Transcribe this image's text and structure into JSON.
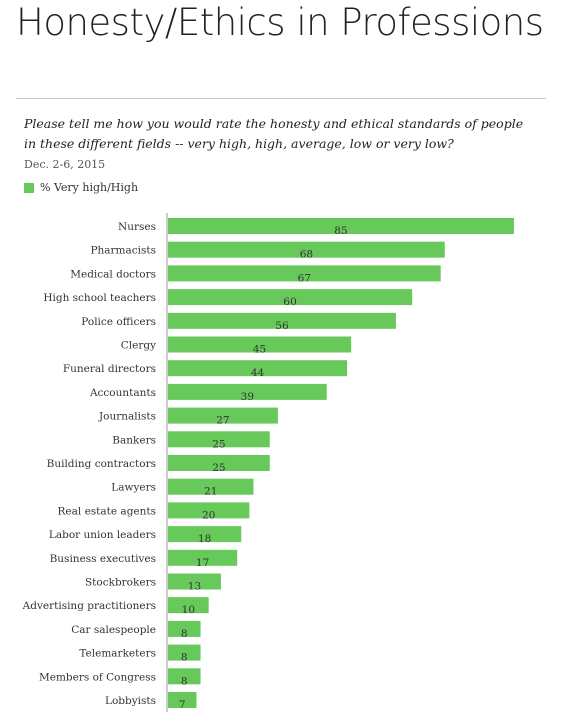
{
  "page": {
    "title": "Honesty/Ethics in Professions",
    "question": "Please tell me how you would rate the honesty and ethical standards of people in these different fields -- very high, high, average, low or very low?",
    "date": "Dec. 2-6, 2015"
  },
  "colors": {
    "bar": "#66c95a",
    "axis": "#999999"
  },
  "chart_data": {
    "type": "bar",
    "orientation": "horizontal",
    "legend": [
      "% Very high/High"
    ],
    "legend_position": "top-left",
    "grid": false,
    "xlim": [
      0,
      100
    ],
    "categories": [
      "Nurses",
      "Pharmacists",
      "Medical doctors",
      "High school teachers",
      "Police officers",
      "Clergy",
      "Funeral directors",
      "Accountants",
      "Journalists",
      "Bankers",
      "Building contractors",
      "Lawyers",
      "Real estate agents",
      "Labor union leaders",
      "Business executives",
      "Stockbrokers",
      "Advertising practitioners",
      "Car salespeople",
      "Telemarketers",
      "Members of Congress",
      "Lobbyists"
    ],
    "series": [
      {
        "name": "% Very high/High",
        "values": [
          85,
          68,
          67,
          60,
          56,
          45,
          44,
          39,
          27,
          25,
          25,
          21,
          20,
          18,
          17,
          13,
          10,
          8,
          8,
          8,
          7
        ]
      }
    ]
  }
}
